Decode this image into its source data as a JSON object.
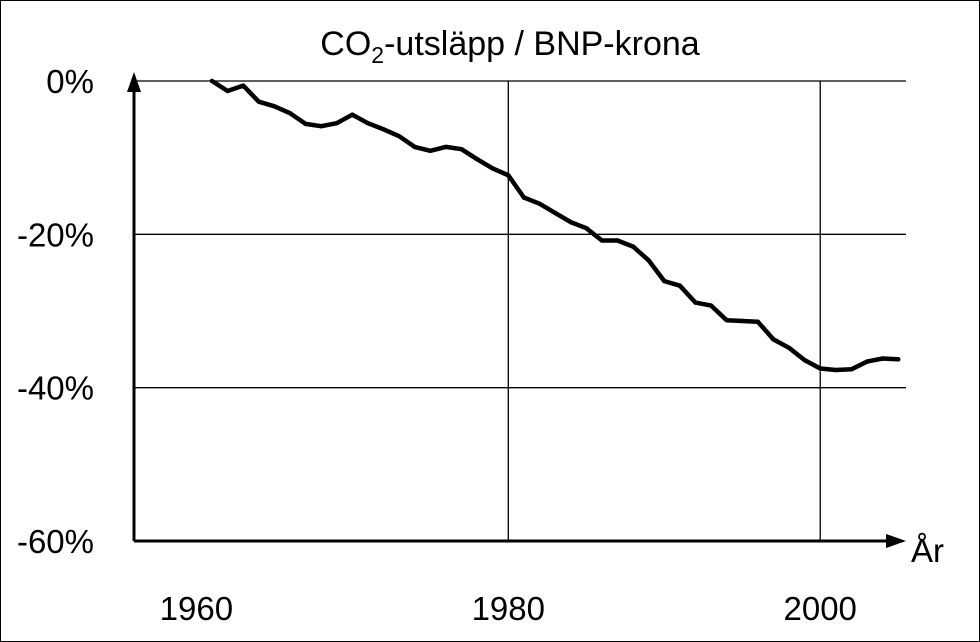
{
  "chart_data": {
    "type": "line",
    "title_main": "CO",
    "title_sub": "2",
    "title_rest": "-utsläpp / BNP-krona",
    "xlabel": "År",
    "ylabel": "",
    "xlim": [
      1956,
      2005.5
    ],
    "ylim": [
      -60,
      0
    ],
    "xticks": [
      {
        "value": 1960,
        "label": "1960"
      },
      {
        "value": 1980,
        "label": "1980"
      },
      {
        "value": 2000,
        "label": "2000"
      }
    ],
    "yticks": [
      {
        "value": 0,
        "label": "0%"
      },
      {
        "value": -20,
        "label": "-20%"
      },
      {
        "value": -40,
        "label": "-40%"
      },
      {
        "value": -60,
        "label": "-60%"
      }
    ],
    "grid": true,
    "legend": "none",
    "line_color": "#000000",
    "series": [
      {
        "x": [
          1961,
          1962,
          1963,
          1964,
          1965,
          1966,
          1967,
          1968,
          1969,
          1970,
          1971,
          1972,
          1973,
          1974,
          1975,
          1976,
          1977,
          1978,
          1979,
          1980,
          1981,
          1982,
          1983,
          1984,
          1985,
          1986,
          1987,
          1988,
          1989,
          1990,
          1991,
          1992,
          1993,
          1994,
          1995,
          1996,
          1997,
          1998,
          1999,
          2000,
          2001,
          2002,
          2003,
          2004,
          2005
        ],
        "y": [
          0,
          -1.3,
          -0.6,
          -2.7,
          -3.3,
          -4.2,
          -5.6,
          -5.9,
          -5.5,
          -4.4,
          -5.5,
          -6.3,
          -7.2,
          -8.6,
          -9.1,
          -8.6,
          -8.9,
          -10.2,
          -11.4,
          -12.3,
          -15.2,
          -16.0,
          -17.2,
          -18.4,
          -19.2,
          -20.8,
          -20.8,
          -21.6,
          -23.4,
          -26.1,
          -26.7,
          -28.9,
          -29.3,
          -31.2,
          -31.3,
          -31.4,
          -33.7,
          -34.8,
          -36.4,
          -37.5,
          -37.7,
          -37.6,
          -36.6,
          -36.2,
          -36.3
        ]
      }
    ]
  }
}
